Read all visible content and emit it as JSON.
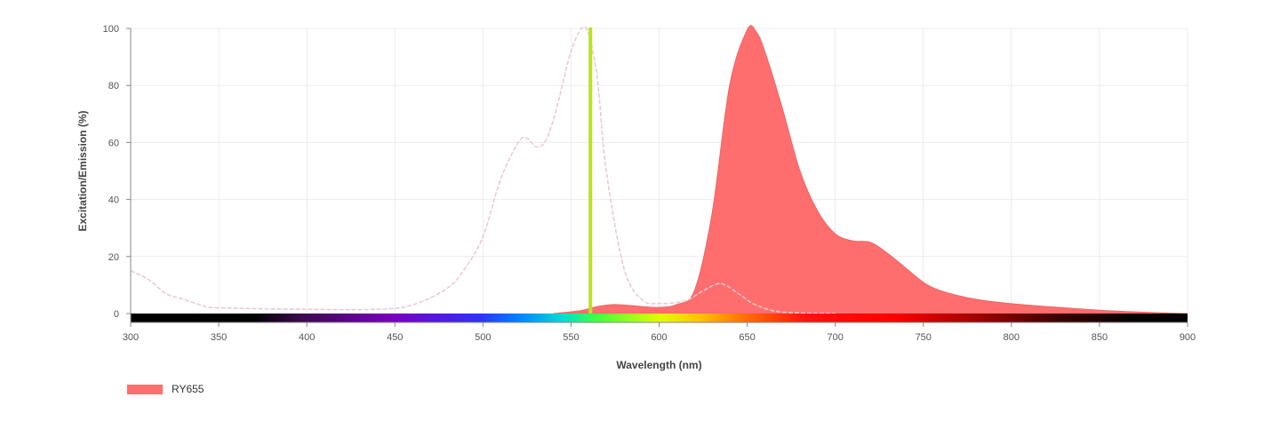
{
  "chart_data": {
    "type": "area",
    "title": "",
    "xlabel": "Wavelength (nm)",
    "ylabel": "Excitation/Emission (%)",
    "xlim": [
      300,
      900
    ],
    "ylim": [
      0,
      100
    ],
    "x_ticks": [
      300,
      350,
      400,
      450,
      500,
      550,
      600,
      650,
      700,
      750,
      800,
      850,
      900
    ],
    "y_ticks": [
      0,
      20,
      40,
      60,
      80,
      100
    ],
    "grid": true,
    "legend_position": "bottom-left",
    "laser_line_nm": 561,
    "series": [
      {
        "name": "RY655",
        "role": "emission",
        "fill": "#ff6e6e",
        "x": [
          540,
          555,
          565,
          575,
          590,
          600,
          610,
          620,
          630,
          640,
          650,
          655,
          660,
          670,
          680,
          690,
          700,
          710,
          720,
          730,
          740,
          750,
          760,
          780,
          800,
          820,
          850,
          870,
          900
        ],
        "y": [
          0,
          1,
          2.5,
          3.2,
          2.5,
          2.2,
          3.2,
          8,
          35,
          80,
          99.5,
          99,
          92,
          72,
          50,
          36,
          28,
          25.5,
          25,
          21,
          16,
          11,
          8,
          5,
          3.5,
          2.5,
          1.2,
          0.6,
          0
        ]
      },
      {
        "name": "",
        "role": "excitation",
        "stroke": "#e9c8cc",
        "x": [
          300,
          310,
          320,
          330,
          340,
          350,
          400,
          440,
          460,
          480,
          490,
          500,
          510,
          520,
          525,
          530,
          535,
          540,
          545,
          550,
          556,
          560,
          565,
          570,
          580,
          590,
          600,
          615,
          625,
          635,
          645,
          655,
          670,
          700
        ],
        "y": [
          15,
          12,
          7,
          5,
          3,
          2,
          1.5,
          1.5,
          3,
          9,
          16,
          27,
          47,
          60,
          61.5,
          58.5,
          60,
          68,
          80,
          92,
          100,
          98,
          82,
          50,
          16,
          5,
          3.5,
          4.5,
          8,
          10.5,
          7,
          3,
          0.5,
          0
        ]
      }
    ],
    "colors": {
      "laser": "#b8e02a",
      "grid": "#ececec",
      "axis": "#888888"
    }
  }
}
